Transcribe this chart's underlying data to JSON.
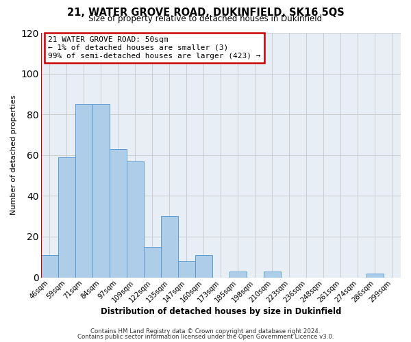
{
  "title": "21, WATER GROVE ROAD, DUKINFIELD, SK16 5QS",
  "subtitle": "Size of property relative to detached houses in Dukinfield",
  "xlabel": "Distribution of detached houses by size in Dukinfield",
  "ylabel": "Number of detached properties",
  "footer_lines": [
    "Contains HM Land Registry data © Crown copyright and database right 2024.",
    "Contains public sector information licensed under the Open Government Licence v3.0."
  ],
  "bin_labels": [
    "46sqm",
    "59sqm",
    "71sqm",
    "84sqm",
    "97sqm",
    "109sqm",
    "122sqm",
    "135sqm",
    "147sqm",
    "160sqm",
    "173sqm",
    "185sqm",
    "198sqm",
    "210sqm",
    "223sqm",
    "236sqm",
    "248sqm",
    "261sqm",
    "274sqm",
    "286sqm",
    "299sqm"
  ],
  "bin_values": [
    11,
    59,
    85,
    85,
    63,
    57,
    15,
    30,
    8,
    11,
    0,
    3,
    0,
    3,
    0,
    0,
    0,
    0,
    0,
    2,
    0
  ],
  "bar_color": "#aecde8",
  "bar_edge_color": "#5b9bd5",
  "highlight_bar_index": 0,
  "highlight_bar_edge_color": "#cc0000",
  "ylim": [
    0,
    120
  ],
  "yticks": [
    0,
    20,
    40,
    60,
    80,
    100,
    120
  ],
  "annotation_box_text": "21 WATER GROVE ROAD: 50sqm\n← 1% of detached houses are smaller (3)\n99% of semi-detached houses are larger (423) →",
  "annotation_box_color": "#cc0000",
  "annotation_box_bg": "#ffffff",
  "grid_color": "#cccccc",
  "bg_color": "#e8eef5",
  "plot_bg_color": "#e8eef5"
}
